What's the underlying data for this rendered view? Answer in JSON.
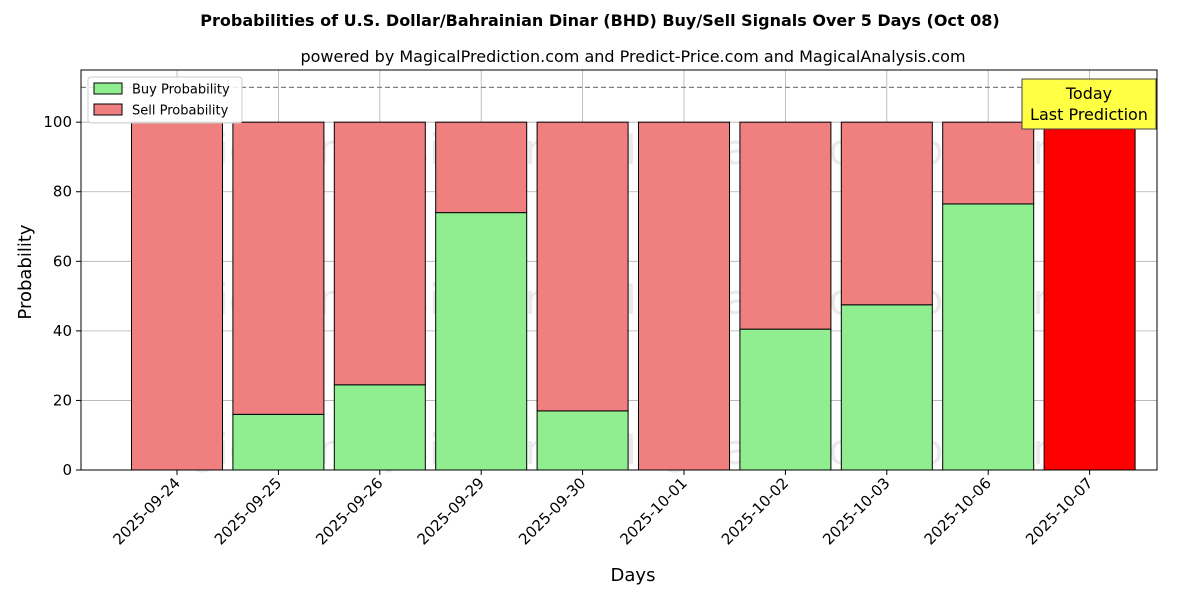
{
  "chart_data": {
    "type": "bar",
    "stacked": true,
    "title": "Probabilities of U.S. Dollar/Bahrainian Dinar (BHD) Buy/Sell Signals Over 5 Days (Oct 08)",
    "subtitle": "powered by MagicalPrediction.com and Predict-Price.com and MagicalAnalysis.com",
    "xlabel": "Days",
    "ylabel": "Probability",
    "ylim": [
      0,
      115
    ],
    "yticks": [
      0,
      20,
      40,
      60,
      80,
      100
    ],
    "grid": true,
    "legend_position": "top-left",
    "reference_line": 110,
    "categories": [
      "2025-09-24",
      "2025-09-25",
      "2025-09-26",
      "2025-09-29",
      "2025-09-30",
      "2025-10-01",
      "2025-10-02",
      "2025-10-03",
      "2025-10-06",
      "2025-10-07"
    ],
    "series": [
      {
        "name": "Buy Probability",
        "color": "#90ee90",
        "values": [
          0,
          16,
          24.5,
          74,
          17,
          0,
          40.5,
          47.5,
          76.5,
          0
        ]
      },
      {
        "name": "Sell Probability",
        "color": "#f08080",
        "values": [
          100,
          84,
          75.5,
          26,
          83,
          100,
          59.5,
          52.5,
          23.5,
          100
        ]
      }
    ],
    "highlight": {
      "index": 9,
      "color": "#ff0000"
    },
    "annotation": {
      "lines": [
        "Today",
        "Last Prediction"
      ],
      "color": "#ffff44"
    },
    "watermarks": [
      "MagicalAnalysis.com",
      "MagicalPrediction.com"
    ]
  }
}
